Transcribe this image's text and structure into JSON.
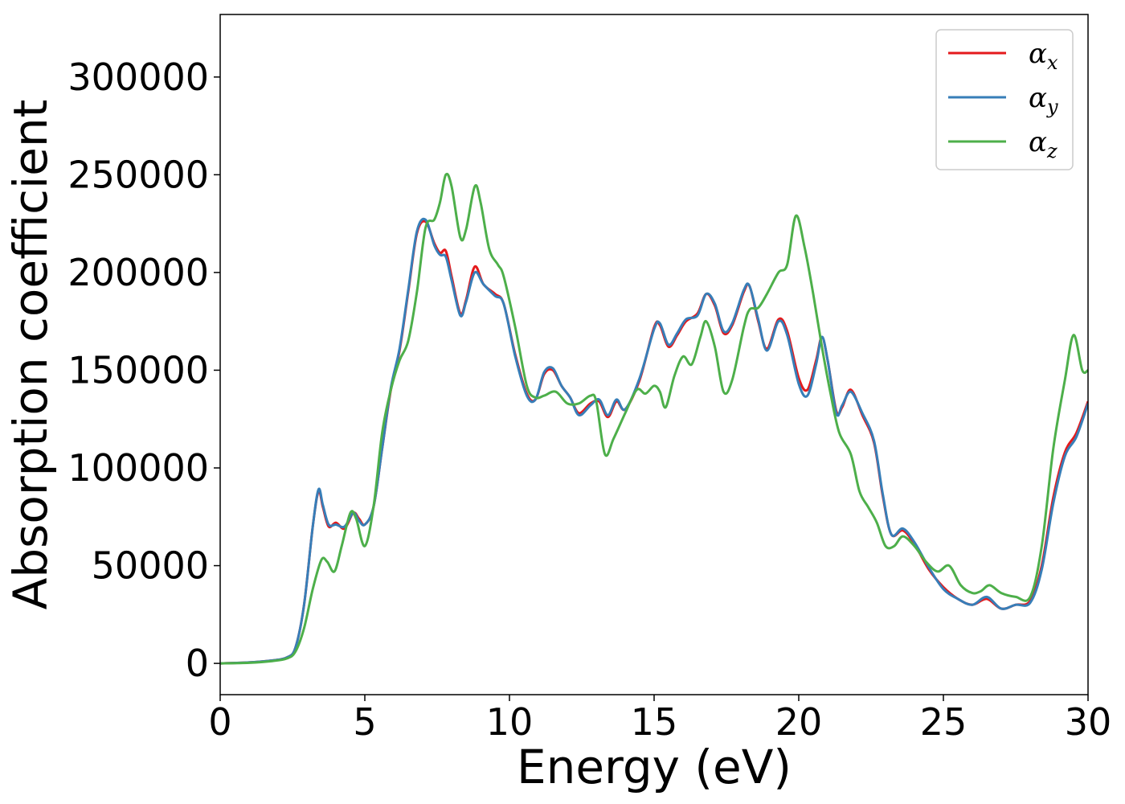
{
  "chart_data": {
    "type": "line",
    "xlabel": "Energy (eV)",
    "ylabel": "Absorption coefficient",
    "xlim": [
      0,
      30
    ],
    "ylim": [
      -16000,
      332000
    ],
    "xticks": [
      0,
      5,
      10,
      15,
      20,
      25,
      30
    ],
    "xtick_labels": [
      "0",
      "5",
      "10",
      "15",
      "20",
      "25",
      "30"
    ],
    "yticks": [
      0,
      50000,
      100000,
      150000,
      200000,
      250000,
      300000
    ],
    "ytick_labels": [
      "0",
      "50000",
      "100000",
      "150000",
      "200000",
      "250000",
      "300000"
    ],
    "grid": false,
    "legend_position": "top-right",
    "series": [
      {
        "name": "α",
        "subscript": "x",
        "color": "#e41a1c",
        "points": [
          [
            0,
            0
          ],
          [
            1,
            500
          ],
          [
            1.8,
            1500
          ],
          [
            2.3,
            3000
          ],
          [
            2.6,
            8000
          ],
          [
            2.9,
            30000
          ],
          [
            3.2,
            70000
          ],
          [
            3.4,
            88000
          ],
          [
            3.55,
            80000
          ],
          [
            3.75,
            70000
          ],
          [
            4.0,
            72000
          ],
          [
            4.3,
            69000
          ],
          [
            4.6,
            77000
          ],
          [
            4.8,
            74000
          ],
          [
            5.0,
            71000
          ],
          [
            5.3,
            80000
          ],
          [
            5.6,
            110000
          ],
          [
            5.9,
            140000
          ],
          [
            6.2,
            160000
          ],
          [
            6.5,
            190000
          ],
          [
            6.8,
            220000
          ],
          [
            7.1,
            226000
          ],
          [
            7.4,
            215000
          ],
          [
            7.6,
            210000
          ],
          [
            7.8,
            211000
          ],
          [
            8.0,
            198000
          ],
          [
            8.3,
            179000
          ],
          [
            8.5,
            186000
          ],
          [
            8.8,
            203000
          ],
          [
            9.1,
            194000
          ],
          [
            9.5,
            189000
          ],
          [
            9.8,
            184000
          ],
          [
            10.2,
            158000
          ],
          [
            10.6,
            138000
          ],
          [
            10.9,
            135000
          ],
          [
            11.2,
            148000
          ],
          [
            11.5,
            150000
          ],
          [
            11.8,
            142000
          ],
          [
            12.1,
            136000
          ],
          [
            12.4,
            128000
          ],
          [
            12.8,
            133000
          ],
          [
            13.1,
            134000
          ],
          [
            13.4,
            126000
          ],
          [
            13.7,
            134000
          ],
          [
            14.0,
            130000
          ],
          [
            14.5,
            145000
          ],
          [
            15.0,
            172000
          ],
          [
            15.2,
            173000
          ],
          [
            15.5,
            162000
          ],
          [
            15.8,
            168000
          ],
          [
            16.1,
            175000
          ],
          [
            16.5,
            179000
          ],
          [
            16.8,
            189000
          ],
          [
            17.1,
            183000
          ],
          [
            17.4,
            169000
          ],
          [
            17.7,
            173000
          ],
          [
            18.1,
            190000
          ],
          [
            18.3,
            193000
          ],
          [
            18.6,
            175000
          ],
          [
            18.9,
            161000
          ],
          [
            19.3,
            176000
          ],
          [
            19.6,
            170000
          ],
          [
            20.0,
            146000
          ],
          [
            20.3,
            140000
          ],
          [
            20.6,
            155000
          ],
          [
            20.8,
            167000
          ],
          [
            21.0,
            155000
          ],
          [
            21.3,
            129000
          ],
          [
            21.5,
            131000
          ],
          [
            21.8,
            140000
          ],
          [
            22.2,
            127000
          ],
          [
            22.6,
            113000
          ],
          [
            22.9,
            86000
          ],
          [
            23.2,
            66000
          ],
          [
            23.6,
            68000
          ],
          [
            24.0,
            61000
          ],
          [
            24.5,
            48000
          ],
          [
            25.0,
            39000
          ],
          [
            25.5,
            33000
          ],
          [
            26.0,
            30000
          ],
          [
            26.5,
            33000
          ],
          [
            27.0,
            28000
          ],
          [
            27.5,
            30000
          ],
          [
            28.0,
            32000
          ],
          [
            28.4,
            50000
          ],
          [
            28.8,
            85000
          ],
          [
            29.2,
            108000
          ],
          [
            29.6,
            118000
          ],
          [
            30.0,
            134000
          ]
        ]
      },
      {
        "name": "α",
        "subscript": "y",
        "color": "#377eb8",
        "points": [
          [
            0,
            0
          ],
          [
            1,
            500
          ],
          [
            1.8,
            1500
          ],
          [
            2.3,
            3000
          ],
          [
            2.6,
            8000
          ],
          [
            2.9,
            30000
          ],
          [
            3.2,
            70000
          ],
          [
            3.4,
            89000
          ],
          [
            3.55,
            81000
          ],
          [
            3.75,
            71000
          ],
          [
            4.0,
            71000
          ],
          [
            4.3,
            70000
          ],
          [
            4.6,
            77000
          ],
          [
            4.8,
            73000
          ],
          [
            5.0,
            71000
          ],
          [
            5.3,
            80000
          ],
          [
            5.6,
            110000
          ],
          [
            5.9,
            141000
          ],
          [
            6.2,
            161000
          ],
          [
            6.5,
            191000
          ],
          [
            6.8,
            221000
          ],
          [
            7.1,
            227000
          ],
          [
            7.4,
            214000
          ],
          [
            7.6,
            209000
          ],
          [
            7.8,
            208000
          ],
          [
            8.0,
            196000
          ],
          [
            8.3,
            178000
          ],
          [
            8.5,
            185000
          ],
          [
            8.8,
            200000
          ],
          [
            9.1,
            194000
          ],
          [
            9.5,
            188000
          ],
          [
            9.8,
            184000
          ],
          [
            10.2,
            157000
          ],
          [
            10.6,
            137000
          ],
          [
            10.9,
            135000
          ],
          [
            11.2,
            149000
          ],
          [
            11.5,
            151000
          ],
          [
            11.8,
            142000
          ],
          [
            12.1,
            136000
          ],
          [
            12.4,
            127000
          ],
          [
            12.8,
            132000
          ],
          [
            13.1,
            135000
          ],
          [
            13.4,
            127000
          ],
          [
            13.7,
            135000
          ],
          [
            14.0,
            130000
          ],
          [
            14.5,
            146000
          ],
          [
            15.0,
            171000
          ],
          [
            15.2,
            174000
          ],
          [
            15.5,
            163000
          ],
          [
            15.8,
            169000
          ],
          [
            16.1,
            176000
          ],
          [
            16.5,
            178000
          ],
          [
            16.8,
            189000
          ],
          [
            17.1,
            184000
          ],
          [
            17.4,
            170000
          ],
          [
            17.7,
            174000
          ],
          [
            18.1,
            191000
          ],
          [
            18.3,
            193000
          ],
          [
            18.6,
            176000
          ],
          [
            18.9,
            160000
          ],
          [
            19.3,
            175000
          ],
          [
            19.6,
            168000
          ],
          [
            20.0,
            143000
          ],
          [
            20.3,
            137000
          ],
          [
            20.6,
            153000
          ],
          [
            20.8,
            167000
          ],
          [
            21.0,
            155000
          ],
          [
            21.3,
            128000
          ],
          [
            21.5,
            132000
          ],
          [
            21.8,
            139000
          ],
          [
            22.2,
            128000
          ],
          [
            22.6,
            114000
          ],
          [
            22.9,
            87000
          ],
          [
            23.2,
            66000
          ],
          [
            23.6,
            69000
          ],
          [
            24.0,
            62000
          ],
          [
            24.5,
            49000
          ],
          [
            25.0,
            38000
          ],
          [
            25.5,
            33000
          ],
          [
            26.0,
            30000
          ],
          [
            26.5,
            34000
          ],
          [
            27.0,
            28000
          ],
          [
            27.5,
            30000
          ],
          [
            28.0,
            31000
          ],
          [
            28.4,
            48000
          ],
          [
            28.8,
            82000
          ],
          [
            29.2,
            106000
          ],
          [
            29.6,
            116000
          ],
          [
            30.0,
            133000
          ]
        ]
      },
      {
        "name": "α",
        "subscript": "z",
        "color": "#4daf4a",
        "points": [
          [
            0,
            0
          ],
          [
            1,
            300
          ],
          [
            1.8,
            1200
          ],
          [
            2.3,
            2500
          ],
          [
            2.6,
            6000
          ],
          [
            2.9,
            18000
          ],
          [
            3.2,
            38000
          ],
          [
            3.5,
            53000
          ],
          [
            3.7,
            52000
          ],
          [
            3.95,
            47000
          ],
          [
            4.2,
            60000
          ],
          [
            4.5,
            77000
          ],
          [
            4.7,
            74000
          ],
          [
            5.0,
            60000
          ],
          [
            5.3,
            80000
          ],
          [
            5.6,
            118000
          ],
          [
            5.9,
            140000
          ],
          [
            6.2,
            155000
          ],
          [
            6.5,
            165000
          ],
          [
            6.8,
            190000
          ],
          [
            7.1,
            223000
          ],
          [
            7.4,
            227000
          ],
          [
            7.6,
            236000
          ],
          [
            7.8,
            250000
          ],
          [
            8.0,
            244000
          ],
          [
            8.3,
            218000
          ],
          [
            8.5,
            222000
          ],
          [
            8.8,
            244000
          ],
          [
            9.0,
            236000
          ],
          [
            9.3,
            212000
          ],
          [
            9.6,
            204000
          ],
          [
            9.8,
            198000
          ],
          [
            10.2,
            172000
          ],
          [
            10.6,
            142000
          ],
          [
            10.9,
            136000
          ],
          [
            11.2,
            137000
          ],
          [
            11.6,
            139000
          ],
          [
            12.0,
            133000
          ],
          [
            12.4,
            133000
          ],
          [
            12.8,
            137000
          ],
          [
            13.0,
            134000
          ],
          [
            13.3,
            107000
          ],
          [
            13.6,
            115000
          ],
          [
            14.0,
            128000
          ],
          [
            14.4,
            140000
          ],
          [
            14.7,
            138000
          ],
          [
            15.0,
            142000
          ],
          [
            15.2,
            139000
          ],
          [
            15.4,
            131000
          ],
          [
            15.7,
            147000
          ],
          [
            16.0,
            157000
          ],
          [
            16.3,
            153000
          ],
          [
            16.6,
            167000
          ],
          [
            16.8,
            175000
          ],
          [
            17.1,
            162000
          ],
          [
            17.4,
            139000
          ],
          [
            17.7,
            145000
          ],
          [
            18.1,
            172000
          ],
          [
            18.3,
            181000
          ],
          [
            18.6,
            182000
          ],
          [
            18.9,
            189000
          ],
          [
            19.3,
            200000
          ],
          [
            19.6,
            204000
          ],
          [
            19.9,
            229000
          ],
          [
            20.2,
            213000
          ],
          [
            20.5,
            189000
          ],
          [
            20.8,
            162000
          ],
          [
            21.1,
            138000
          ],
          [
            21.4,
            118000
          ],
          [
            21.8,
            107000
          ],
          [
            22.1,
            88000
          ],
          [
            22.4,
            80000
          ],
          [
            22.7,
            72000
          ],
          [
            23.0,
            60000
          ],
          [
            23.3,
            60000
          ],
          [
            23.6,
            65000
          ],
          [
            24.0,
            60000
          ],
          [
            24.4,
            52000
          ],
          [
            24.8,
            47000
          ],
          [
            25.2,
            50000
          ],
          [
            25.6,
            40000
          ],
          [
            26.0,
            36000
          ],
          [
            26.3,
            37000
          ],
          [
            26.6,
            40000
          ],
          [
            27.0,
            36000
          ],
          [
            27.5,
            34000
          ],
          [
            28.0,
            34000
          ],
          [
            28.4,
            60000
          ],
          [
            28.8,
            110000
          ],
          [
            29.2,
            145000
          ],
          [
            29.5,
            168000
          ],
          [
            29.8,
            150000
          ],
          [
            30.0,
            150000
          ]
        ]
      }
    ]
  }
}
